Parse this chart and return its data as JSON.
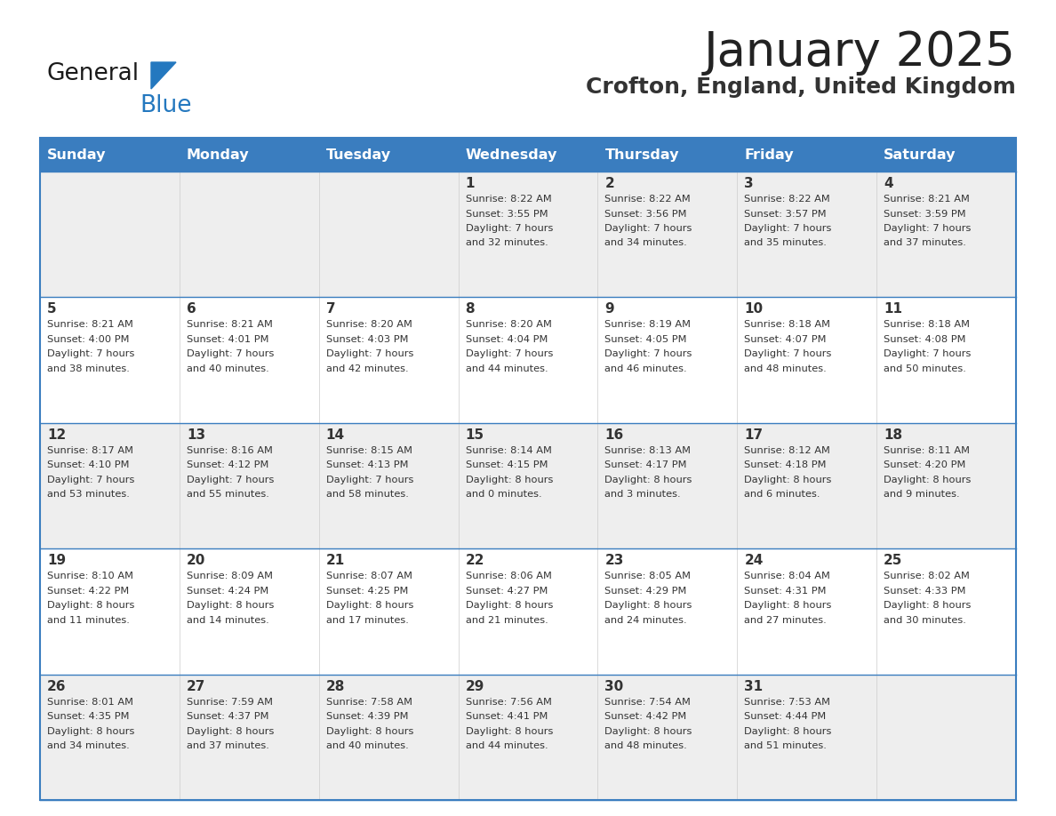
{
  "title": "January 2025",
  "subtitle": "Crofton, England, United Kingdom",
  "days_of_week": [
    "Sunday",
    "Monday",
    "Tuesday",
    "Wednesday",
    "Thursday",
    "Friday",
    "Saturday"
  ],
  "header_bg": "#3a7dbf",
  "header_text_color": "#ffffff",
  "row_bg_odd": "#eeeeee",
  "row_bg_even": "#ffffff",
  "cell_border_color": "#3a7dbf",
  "row_border_color": "#3a7dbf",
  "text_color": "#333333",
  "title_color": "#222222",
  "subtitle_color": "#333333",
  "logo_general_color": "#1a1a1a",
  "logo_blue_color": "#2478bf",
  "calendar_data": [
    [
      null,
      null,
      null,
      {
        "day": 1,
        "sunrise": "8:22 AM",
        "sunset": "3:55 PM",
        "daylight_h": "7 hours",
        "daylight_m": "and 32 minutes."
      },
      {
        "day": 2,
        "sunrise": "8:22 AM",
        "sunset": "3:56 PM",
        "daylight_h": "7 hours",
        "daylight_m": "and 34 minutes."
      },
      {
        "day": 3,
        "sunrise": "8:22 AM",
        "sunset": "3:57 PM",
        "daylight_h": "7 hours",
        "daylight_m": "and 35 minutes."
      },
      {
        "day": 4,
        "sunrise": "8:21 AM",
        "sunset": "3:59 PM",
        "daylight_h": "7 hours",
        "daylight_m": "and 37 minutes."
      }
    ],
    [
      {
        "day": 5,
        "sunrise": "8:21 AM",
        "sunset": "4:00 PM",
        "daylight_h": "7 hours",
        "daylight_m": "and 38 minutes."
      },
      {
        "day": 6,
        "sunrise": "8:21 AM",
        "sunset": "4:01 PM",
        "daylight_h": "7 hours",
        "daylight_m": "and 40 minutes."
      },
      {
        "day": 7,
        "sunrise": "8:20 AM",
        "sunset": "4:03 PM",
        "daylight_h": "7 hours",
        "daylight_m": "and 42 minutes."
      },
      {
        "day": 8,
        "sunrise": "8:20 AM",
        "sunset": "4:04 PM",
        "daylight_h": "7 hours",
        "daylight_m": "and 44 minutes."
      },
      {
        "day": 9,
        "sunrise": "8:19 AM",
        "sunset": "4:05 PM",
        "daylight_h": "7 hours",
        "daylight_m": "and 46 minutes."
      },
      {
        "day": 10,
        "sunrise": "8:18 AM",
        "sunset": "4:07 PM",
        "daylight_h": "7 hours",
        "daylight_m": "and 48 minutes."
      },
      {
        "day": 11,
        "sunrise": "8:18 AM",
        "sunset": "4:08 PM",
        "daylight_h": "7 hours",
        "daylight_m": "and 50 minutes."
      }
    ],
    [
      {
        "day": 12,
        "sunrise": "8:17 AM",
        "sunset": "4:10 PM",
        "daylight_h": "7 hours",
        "daylight_m": "and 53 minutes."
      },
      {
        "day": 13,
        "sunrise": "8:16 AM",
        "sunset": "4:12 PM",
        "daylight_h": "7 hours",
        "daylight_m": "and 55 minutes."
      },
      {
        "day": 14,
        "sunrise": "8:15 AM",
        "sunset": "4:13 PM",
        "daylight_h": "7 hours",
        "daylight_m": "and 58 minutes."
      },
      {
        "day": 15,
        "sunrise": "8:14 AM",
        "sunset": "4:15 PM",
        "daylight_h": "8 hours",
        "daylight_m": "and 0 minutes."
      },
      {
        "day": 16,
        "sunrise": "8:13 AM",
        "sunset": "4:17 PM",
        "daylight_h": "8 hours",
        "daylight_m": "and 3 minutes."
      },
      {
        "day": 17,
        "sunrise": "8:12 AM",
        "sunset": "4:18 PM",
        "daylight_h": "8 hours",
        "daylight_m": "and 6 minutes."
      },
      {
        "day": 18,
        "sunrise": "8:11 AM",
        "sunset": "4:20 PM",
        "daylight_h": "8 hours",
        "daylight_m": "and 9 minutes."
      }
    ],
    [
      {
        "day": 19,
        "sunrise": "8:10 AM",
        "sunset": "4:22 PM",
        "daylight_h": "8 hours",
        "daylight_m": "and 11 minutes."
      },
      {
        "day": 20,
        "sunrise": "8:09 AM",
        "sunset": "4:24 PM",
        "daylight_h": "8 hours",
        "daylight_m": "and 14 minutes."
      },
      {
        "day": 21,
        "sunrise": "8:07 AM",
        "sunset": "4:25 PM",
        "daylight_h": "8 hours",
        "daylight_m": "and 17 minutes."
      },
      {
        "day": 22,
        "sunrise": "8:06 AM",
        "sunset": "4:27 PM",
        "daylight_h": "8 hours",
        "daylight_m": "and 21 minutes."
      },
      {
        "day": 23,
        "sunrise": "8:05 AM",
        "sunset": "4:29 PM",
        "daylight_h": "8 hours",
        "daylight_m": "and 24 minutes."
      },
      {
        "day": 24,
        "sunrise": "8:04 AM",
        "sunset": "4:31 PM",
        "daylight_h": "8 hours",
        "daylight_m": "and 27 minutes."
      },
      {
        "day": 25,
        "sunrise": "8:02 AM",
        "sunset": "4:33 PM",
        "daylight_h": "8 hours",
        "daylight_m": "and 30 minutes."
      }
    ],
    [
      {
        "day": 26,
        "sunrise": "8:01 AM",
        "sunset": "4:35 PM",
        "daylight_h": "8 hours",
        "daylight_m": "and 34 minutes."
      },
      {
        "day": 27,
        "sunrise": "7:59 AM",
        "sunset": "4:37 PM",
        "daylight_h": "8 hours",
        "daylight_m": "and 37 minutes."
      },
      {
        "day": 28,
        "sunrise": "7:58 AM",
        "sunset": "4:39 PM",
        "daylight_h": "8 hours",
        "daylight_m": "and 40 minutes."
      },
      {
        "day": 29,
        "sunrise": "7:56 AM",
        "sunset": "4:41 PM",
        "daylight_h": "8 hours",
        "daylight_m": "and 44 minutes."
      },
      {
        "day": 30,
        "sunrise": "7:54 AM",
        "sunset": "4:42 PM",
        "daylight_h": "8 hours",
        "daylight_m": "and 48 minutes."
      },
      {
        "day": 31,
        "sunrise": "7:53 AM",
        "sunset": "4:44 PM",
        "daylight_h": "8 hours",
        "daylight_m": "and 51 minutes."
      },
      null
    ]
  ]
}
